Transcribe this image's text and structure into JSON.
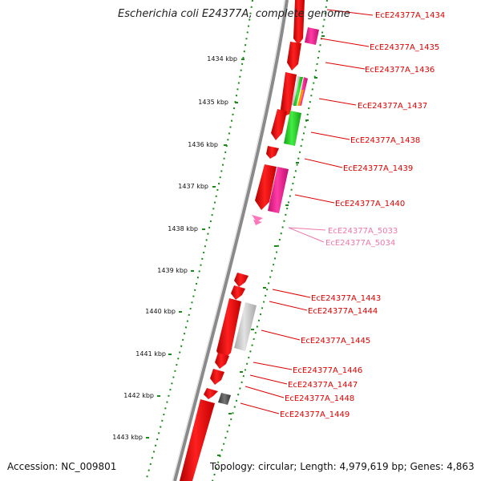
{
  "title": "Escherichia coli E24377A, complete genome",
  "accession": "Accession: NC_009801",
  "summary": "Topology: circular; Length: 4,979,619 bp; Genes: 4,863",
  "colors": {
    "backbone": "#8a8a8a",
    "gene_forward": "#ff0000",
    "gene_magenta": "#e8198c",
    "gene_green": "#22cc22",
    "gene_grey": "#c8c8c8",
    "gene_dark": "#555555",
    "gene_pink": "#ff66aa",
    "label_primary": "#dd0000",
    "label_secondary": "#ee77aa",
    "tick": "#1a8a1a"
  },
  "scale_labels": [
    "1434 kbp",
    "1435 kbp",
    "1436 kbp",
    "1437 kbp",
    "1438 kbp",
    "1439 kbp",
    "1440 kbp",
    "1441 kbp",
    "1442 kbp",
    "1443 kbp"
  ],
  "gene_labels": [
    {
      "text": "EcE24377A_1434",
      "type": "primary"
    },
    {
      "text": "EcE24377A_1435",
      "type": "primary"
    },
    {
      "text": "EcE24377A_1436",
      "type": "primary"
    },
    {
      "text": "EcE24377A_1437",
      "type": "primary"
    },
    {
      "text": "EcE24377A_1438",
      "type": "primary"
    },
    {
      "text": "EcE24377A_1439",
      "type": "primary"
    },
    {
      "text": "EcE24377A_1440",
      "type": "primary"
    },
    {
      "text": "EcE24377A_5033",
      "type": "secondary"
    },
    {
      "text": "EcE24377A_5034",
      "type": "secondary"
    },
    {
      "text": "EcE24377A_1443",
      "type": "primary"
    },
    {
      "text": "EcE24377A_1444",
      "type": "primary"
    },
    {
      "text": "EcE24377A_1445",
      "type": "primary"
    },
    {
      "text": "EcE24377A_1446",
      "type": "primary"
    },
    {
      "text": "EcE24377A_1447",
      "type": "primary"
    },
    {
      "text": "EcE24377A_1448",
      "type": "primary"
    },
    {
      "text": "EcE24377A_1449",
      "type": "primary"
    }
  ]
}
